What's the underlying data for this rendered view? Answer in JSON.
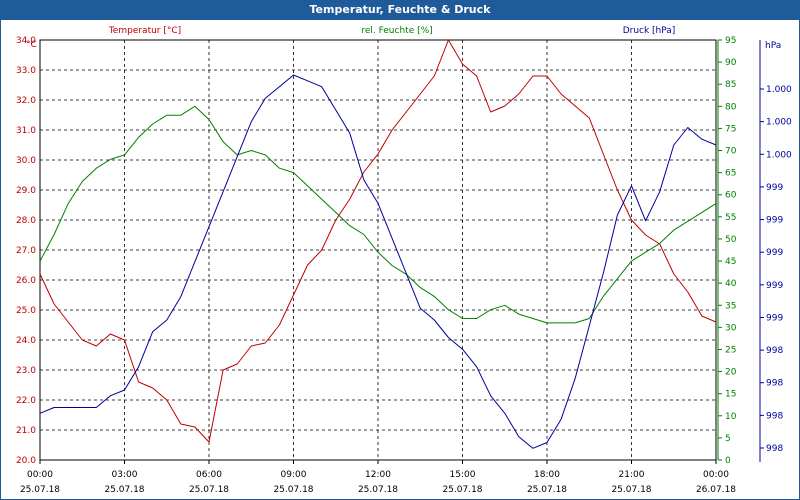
{
  "window": {
    "title": "Temperatur, Feuchte & Druck"
  },
  "colors": {
    "temperature": "#c00000",
    "humidity": "#008000",
    "pressure": "#00009c",
    "frame": "#1f5b9b"
  },
  "chart_data": {
    "type": "line",
    "title": "Temperatur, Feuchte & Druck",
    "grid": true,
    "x_labels": [
      {
        "time": "00:00",
        "date": "25.07.18"
      },
      {
        "time": "03:00",
        "date": "25.07.18"
      },
      {
        "time": "06:00",
        "date": "25.07.18"
      },
      {
        "time": "09:00",
        "date": "25.07.18"
      },
      {
        "time": "12:00",
        "date": "25.07.18"
      },
      {
        "time": "15:00",
        "date": "25.07.18"
      },
      {
        "time": "18:00",
        "date": "25.07.18"
      },
      {
        "time": "21:00",
        "date": "25.07.18"
      },
      {
        "time": "00:00",
        "date": "26.07.18"
      }
    ],
    "xlim": [
      0,
      24
    ],
    "axes": {
      "temperature": {
        "label": "Temperatur [°C]",
        "unit": "°C",
        "ylim": [
          20.0,
          34.0
        ],
        "ticks": [
          "20.0",
          "21.0",
          "22.0",
          "23.0",
          "24.0",
          "25.0",
          "26.0",
          "27.0",
          "28.0",
          "29.0",
          "30.0",
          "31.0",
          "32.0",
          "33.0",
          "34.0"
        ]
      },
      "humidity": {
        "label": "rel. Feuchte [%]",
        "unit": "%",
        "ylim": [
          0,
          95
        ],
        "ticks": [
          "0",
          "5",
          "10",
          "15",
          "20",
          "25",
          "30",
          "35",
          "40",
          "45",
          "50",
          "55",
          "60",
          "65",
          "70",
          "75",
          "80",
          "85",
          "90",
          "95"
        ]
      },
      "pressure": {
        "label": "Druck [hPa]",
        "unit": "hPa",
        "ylim": [
          997.6,
          1001.2
        ],
        "ticks": [
          "998",
          "998",
          "998",
          "998",
          "999",
          "999",
          "999",
          "999",
          "999",
          "1.000",
          "1.000",
          "1.000"
        ]
      }
    },
    "series": [
      {
        "name": "Temperatur [°C]",
        "axis": "temperature",
        "x": [
          0,
          0.5,
          1,
          1.5,
          2,
          2.5,
          3,
          3.5,
          4,
          4.5,
          5,
          5.5,
          6,
          6.5,
          7,
          7.5,
          8,
          8.5,
          9,
          9.5,
          10,
          10.5,
          11,
          11.5,
          12,
          12.5,
          13,
          13.5,
          14,
          14.5,
          15,
          15.5,
          16,
          16.5,
          17,
          17.5,
          18,
          18.5,
          19,
          19.5,
          20,
          20.5,
          21,
          21.5,
          22,
          22.5,
          23,
          23.5,
          24
        ],
        "values": [
          26.2,
          25.2,
          24.6,
          24.0,
          23.8,
          24.2,
          24.0,
          22.6,
          22.4,
          22.0,
          21.2,
          21.1,
          20.6,
          23.0,
          23.2,
          23.8,
          23.9,
          24.5,
          25.5,
          26.5,
          27.0,
          28.0,
          28.7,
          29.6,
          30.2,
          31.0,
          31.6,
          32.2,
          32.8,
          34.0,
          33.2,
          32.8,
          31.6,
          31.8,
          32.2,
          32.8,
          32.8,
          32.2,
          31.8,
          31.4,
          30.2,
          29.0,
          28.0,
          27.5,
          27.2,
          26.2,
          25.6,
          24.8,
          24.6
        ]
      },
      {
        "name": "rel. Feuchte [%]",
        "axis": "humidity",
        "x": [
          0,
          0.5,
          1,
          1.5,
          2,
          2.5,
          3,
          3.5,
          4,
          4.5,
          5,
          5.5,
          6,
          6.5,
          7,
          7.5,
          8,
          8.5,
          9,
          9.5,
          10,
          10.5,
          11,
          11.5,
          12,
          12.5,
          13,
          13.5,
          14,
          14.5,
          15,
          15.5,
          16,
          16.5,
          17,
          17.5,
          18,
          18.5,
          19,
          19.5,
          20,
          20.5,
          21,
          21.5,
          22,
          22.5,
          23,
          23.5,
          24
        ],
        "values": [
          45,
          51,
          58,
          63,
          66,
          68,
          69,
          73,
          76,
          78,
          78,
          80,
          77,
          72,
          69,
          70,
          69,
          66,
          65,
          62,
          59,
          56,
          53,
          51,
          47,
          44,
          42,
          39,
          37,
          34,
          32,
          32,
          34,
          35,
          33,
          32,
          31,
          31,
          31,
          32,
          37,
          41,
          45,
          47,
          49,
          52,
          54,
          56,
          58
        ]
      },
      {
        "name": "Druck [hPa]",
        "axis": "pressure",
        "x": [
          0,
          0.5,
          1,
          1.5,
          2,
          2.5,
          3,
          3.5,
          4,
          4.5,
          5,
          5.5,
          6,
          6.5,
          7,
          7.5,
          8,
          8.5,
          9,
          9.5,
          10,
          10.5,
          11,
          11.5,
          12,
          12.5,
          13,
          13.5,
          14,
          14.5,
          15,
          15.5,
          16,
          16.5,
          17,
          17.5,
          18,
          18.5,
          19,
          19.5,
          20,
          20.5,
          21,
          21.5,
          22,
          22.5,
          23,
          23.5,
          24
        ],
        "values": [
          998.0,
          998.05,
          998.05,
          998.05,
          998.05,
          998.15,
          998.2,
          998.4,
          998.7,
          998.8,
          999.0,
          999.3,
          999.6,
          999.9,
          1000.2,
          1000.5,
          1000.7,
          1000.8,
          1000.9,
          1000.85,
          1000.8,
          1000.6,
          1000.4,
          1000.0,
          999.8,
          999.5,
          999.2,
          998.9,
          998.8,
          998.65,
          998.55,
          998.4,
          998.15,
          998.0,
          997.8,
          997.7,
          997.75,
          997.95,
          998.3,
          998.75,
          999.2,
          999.7,
          999.95,
          999.65,
          999.9,
          1000.3,
          1000.45,
          1000.35,
          1000.3
        ]
      }
    ]
  }
}
